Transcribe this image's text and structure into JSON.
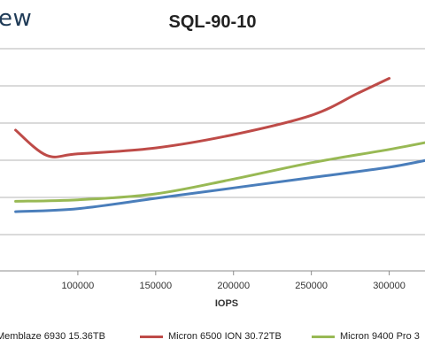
{
  "brand": {
    "logo_text": "ew"
  },
  "chart_data": {
    "type": "line",
    "title": "SQL-90-10",
    "xlabel": "IOPS",
    "ylabel": "",
    "x_ticks": [
      100000,
      150000,
      200000,
      250000,
      300000
    ],
    "x_tick_labels": [
      "100000",
      "150000",
      "200000",
      "250000",
      "300000"
    ],
    "grid": "horizontal",
    "legend": "bottom",
    "series": [
      {
        "name": "Memblaze 6930 15.36TB",
        "color": "#4a7ebb",
        "x": [
          60000,
          100000,
          150000,
          200000,
          250000,
          300000,
          330000
        ],
        "y": [
          0.0,
          0.2,
          0.9,
          1.6,
          2.3,
          3.0,
          3.6
        ]
      },
      {
        "name": "Micron 6500 ION 30.72TB",
        "color": "#be4b48",
        "x": [
          60000,
          80000,
          100000,
          150000,
          200000,
          250000,
          280000,
          300000
        ],
        "y": [
          5.5,
          3.8,
          3.9,
          4.3,
          5.2,
          6.5,
          8.0,
          9.0
        ]
      },
      {
        "name": "Micron 9400 Pro 3",
        "color": "#98b954",
        "x": [
          60000,
          100000,
          150000,
          200000,
          250000,
          300000,
          330000
        ],
        "y": [
          0.7,
          0.8,
          1.2,
          2.2,
          3.3,
          4.2,
          4.8
        ]
      }
    ]
  }
}
